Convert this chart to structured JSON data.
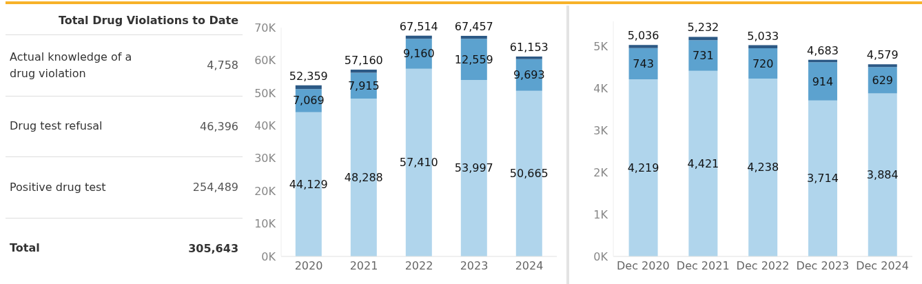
{
  "chart_data": [
    {
      "type": "other",
      "title": "Total Drug Violations to Date",
      "categories": [
        "Actual knowledge of a drug violation",
        "Drug test refusal",
        "Positive drug test",
        "Total"
      ],
      "value_labels": [
        "4,758",
        "46,396",
        "254,489",
        "305,643"
      ]
    },
    {
      "type": "bar",
      "stacked": true,
      "categories": [
        "2020",
        "2021",
        "2022",
        "2023",
        "2024"
      ],
      "ylim": [
        0,
        70000
      ],
      "yticks": [
        {
          "value": 0,
          "label": "0K"
        },
        {
          "value": 10000,
          "label": "10K"
        },
        {
          "value": 20000,
          "label": "20K"
        },
        {
          "value": 30000,
          "label": "30K"
        },
        {
          "value": 40000,
          "label": "40K"
        },
        {
          "value": 50000,
          "label": "50K"
        },
        {
          "value": 60000,
          "label": "60K"
        },
        {
          "value": 70000,
          "label": "70K"
        }
      ],
      "grid": false,
      "totals": [
        "52,359",
        "57,160",
        "67,514",
        "67,457",
        "61,153"
      ],
      "series": [
        {
          "color": "#b0d5ec",
          "values": [
            44129,
            48288,
            57410,
            53997,
            50665
          ],
          "value_labels": [
            "44,129",
            "48,288",
            "57,410",
            "53,997",
            "50,665"
          ]
        },
        {
          "color": "#5ca2cf",
          "values": [
            7069,
            7915,
            9160,
            12559,
            9693
          ],
          "value_labels": [
            "7,069",
            "7,915",
            "9,160",
            "12,559",
            "9,693"
          ]
        },
        {
          "color": "#2c5985",
          "values": [
            1161,
            957,
            944,
            901,
            795
          ]
        }
      ]
    },
    {
      "type": "bar",
      "stacked": true,
      "categories": [
        "Dec 2020",
        "Dec 2021",
        "Dec 2022",
        "Dec 2023",
        "Dec 2024"
      ],
      "ylim": [
        0,
        5600
      ],
      "yticks": [
        {
          "value": 0,
          "label": "0K"
        },
        {
          "value": 1000,
          "label": "1K"
        },
        {
          "value": 2000,
          "label": "2K"
        },
        {
          "value": 3000,
          "label": "3K"
        },
        {
          "value": 4000,
          "label": "4K"
        },
        {
          "value": 5000,
          "label": "5K"
        }
      ],
      "grid": false,
      "totals": [
        "5,036",
        "5,232",
        "5,033",
        "4,683",
        "4,579"
      ],
      "series": [
        {
          "color": "#b0d5ec",
          "values": [
            4219,
            4421,
            4238,
            3714,
            3884
          ],
          "value_labels": [
            "4,219",
            "4,421",
            "4,238",
            "3,714",
            "3,884"
          ]
        },
        {
          "color": "#5ca2cf",
          "values": [
            743,
            731,
            720,
            914,
            629
          ],
          "value_labels": [
            "743",
            "731",
            "720",
            "914",
            "629"
          ]
        },
        {
          "color": "#2c5985",
          "values": [
            74,
            80,
            75,
            55,
            66
          ]
        }
      ]
    }
  ]
}
